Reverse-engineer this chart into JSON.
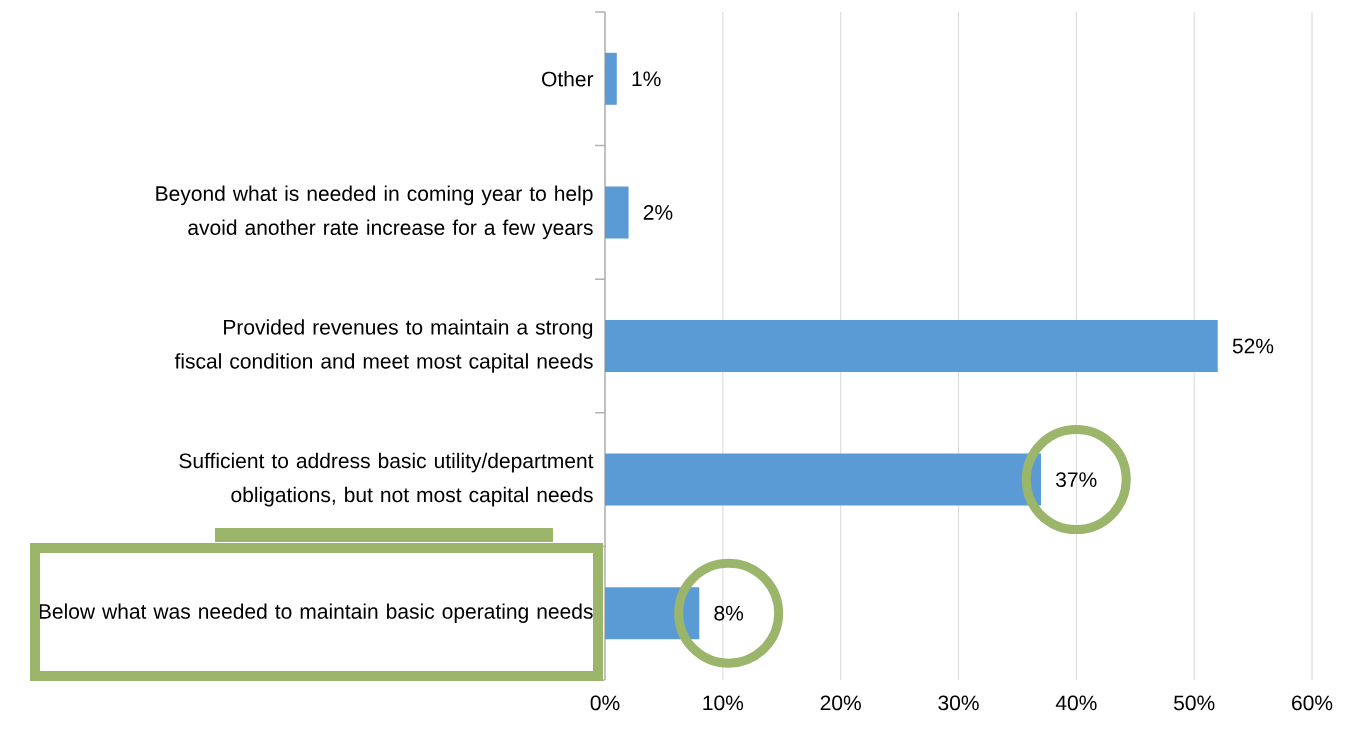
{
  "chart_data": {
    "type": "bar",
    "orientation": "horizontal",
    "categories": [
      "Other",
      "Beyond what is needed in coming year to help avoid another rate increase for a few years",
      "Provided revenues to maintain a strong fiscal condition and meet most capital needs",
      "Sufficient to address basic utility/department obligations, but not most capital needs",
      "Below what was needed to maintain basic operating needs"
    ],
    "values": [
      1,
      2,
      52,
      37,
      8
    ],
    "value_labels": [
      "1%",
      "2%",
      "52%",
      "37%",
      "8%"
    ],
    "color": "#5b9bd5",
    "xlim": [
      0,
      60
    ],
    "xticks": [
      {
        "value": 0,
        "label": "0%"
      },
      {
        "value": 10,
        "label": "10%"
      },
      {
        "value": 20,
        "label": "20%"
      },
      {
        "value": 30,
        "label": "30%"
      },
      {
        "value": 40,
        "label": "40%"
      },
      {
        "value": 50,
        "label": "50%"
      },
      {
        "value": 60,
        "label": "60%"
      }
    ],
    "grid": "x"
  }
}
